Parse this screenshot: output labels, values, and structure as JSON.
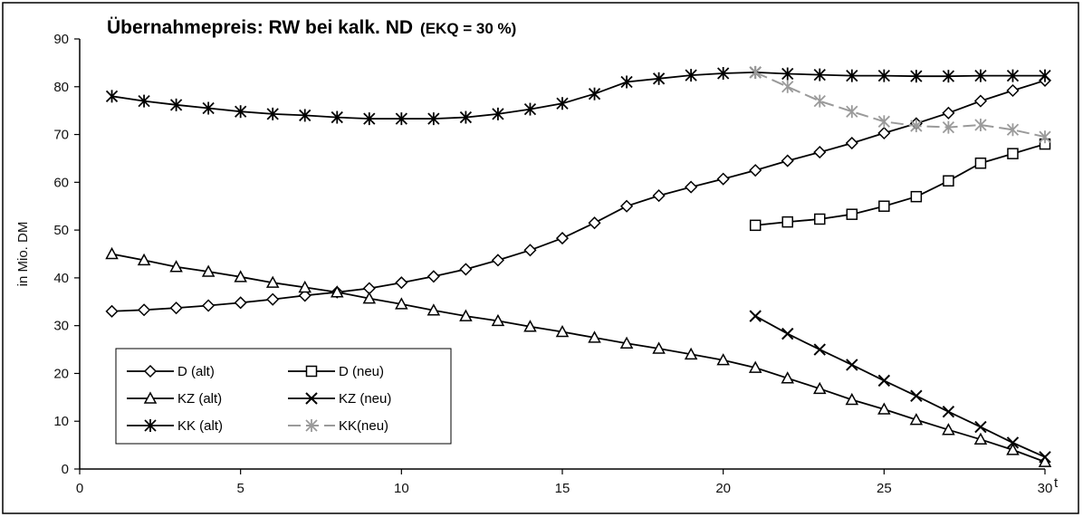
{
  "chart_data": {
    "type": "line",
    "title": "Übernahmepreis: RW bei kalk. ND",
    "subtitle": "(EKQ = 30 %)",
    "xlabel": "t",
    "ylabel": "in Mio. DM",
    "xlim": [
      0,
      30
    ],
    "ylim": [
      0,
      90
    ],
    "x_ticks": [
      0,
      5,
      10,
      15,
      20,
      25,
      30
    ],
    "y_ticks": [
      0,
      10,
      20,
      30,
      40,
      50,
      60,
      70,
      80,
      90
    ],
    "grid": false,
    "legend_position": "bottom-left",
    "series": [
      {
        "name": "D (alt)",
        "marker": "diamond",
        "color": "#000000",
        "dashed": false,
        "x": [
          1,
          2,
          3,
          4,
          5,
          6,
          7,
          8,
          9,
          10,
          11,
          12,
          13,
          14,
          15,
          16,
          17,
          18,
          19,
          20,
          21,
          22,
          23,
          24,
          25,
          26,
          27,
          28,
          29,
          30
        ],
        "values": [
          33.0,
          33.3,
          33.7,
          34.2,
          34.8,
          35.5,
          36.3,
          37.0,
          37.8,
          39.0,
          40.3,
          41.8,
          43.7,
          45.8,
          48.3,
          51.5,
          55.0,
          57.2,
          59.0,
          60.7,
          62.5,
          64.5,
          66.3,
          68.2,
          70.3,
          72.3,
          74.5,
          77.0,
          79.2,
          81.3
        ]
      },
      {
        "name": "D (neu)",
        "marker": "square",
        "color": "#000000",
        "dashed": false,
        "x": [
          21,
          22,
          23,
          24,
          25,
          26,
          27,
          28,
          29,
          30
        ],
        "values": [
          51.0,
          51.7,
          52.3,
          53.3,
          55.0,
          57.0,
          60.3,
          64.0,
          66.0,
          68.0
        ]
      },
      {
        "name": "KZ (alt)",
        "marker": "triangle",
        "color": "#000000",
        "dashed": false,
        "x": [
          1,
          2,
          3,
          4,
          5,
          6,
          7,
          8,
          9,
          10,
          11,
          12,
          13,
          14,
          15,
          16,
          17,
          18,
          19,
          20,
          21,
          22,
          23,
          24,
          25,
          26,
          27,
          28,
          29,
          30
        ],
        "values": [
          45.0,
          43.7,
          42.3,
          41.3,
          40.2,
          39.0,
          38.0,
          37.0,
          35.7,
          34.5,
          33.2,
          32.0,
          31.0,
          29.8,
          28.7,
          27.5,
          26.3,
          25.2,
          24.0,
          22.8,
          21.2,
          19.0,
          16.8,
          14.5,
          12.5,
          10.3,
          8.2,
          6.2,
          4.0,
          1.5
        ]
      },
      {
        "name": "KZ (neu)",
        "marker": "x",
        "color": "#000000",
        "dashed": false,
        "x": [
          21,
          22,
          23,
          24,
          25,
          26,
          27,
          28,
          29,
          30
        ],
        "values": [
          32.0,
          28.3,
          25.0,
          21.8,
          18.5,
          15.3,
          12.0,
          8.8,
          5.5,
          2.5
        ]
      },
      {
        "name": "KK (alt)",
        "marker": "star",
        "color": "#000000",
        "dashed": false,
        "x": [
          1,
          2,
          3,
          4,
          5,
          6,
          7,
          8,
          9,
          10,
          11,
          12,
          13,
          14,
          15,
          16,
          17,
          18,
          19,
          20,
          21,
          22,
          23,
          24,
          25,
          26,
          27,
          28,
          29,
          30
        ],
        "values": [
          78.0,
          77.0,
          76.2,
          75.5,
          74.8,
          74.3,
          74.0,
          73.6,
          73.3,
          73.3,
          73.3,
          73.6,
          74.3,
          75.3,
          76.5,
          78.5,
          81.0,
          81.7,
          82.4,
          82.8,
          83.0,
          82.7,
          82.5,
          82.3,
          82.3,
          82.2,
          82.2,
          82.3,
          82.3,
          82.3
        ]
      },
      {
        "name": "KK(neu)",
        "marker": "star",
        "color": "#9a9a9a",
        "dashed": true,
        "x": [
          21,
          22,
          23,
          24,
          25,
          26,
          27,
          28,
          29,
          30
        ],
        "values": [
          83.0,
          80.0,
          77.0,
          74.8,
          72.7,
          71.8,
          71.5,
          72.0,
          71.0,
          69.5
        ]
      }
    ]
  }
}
